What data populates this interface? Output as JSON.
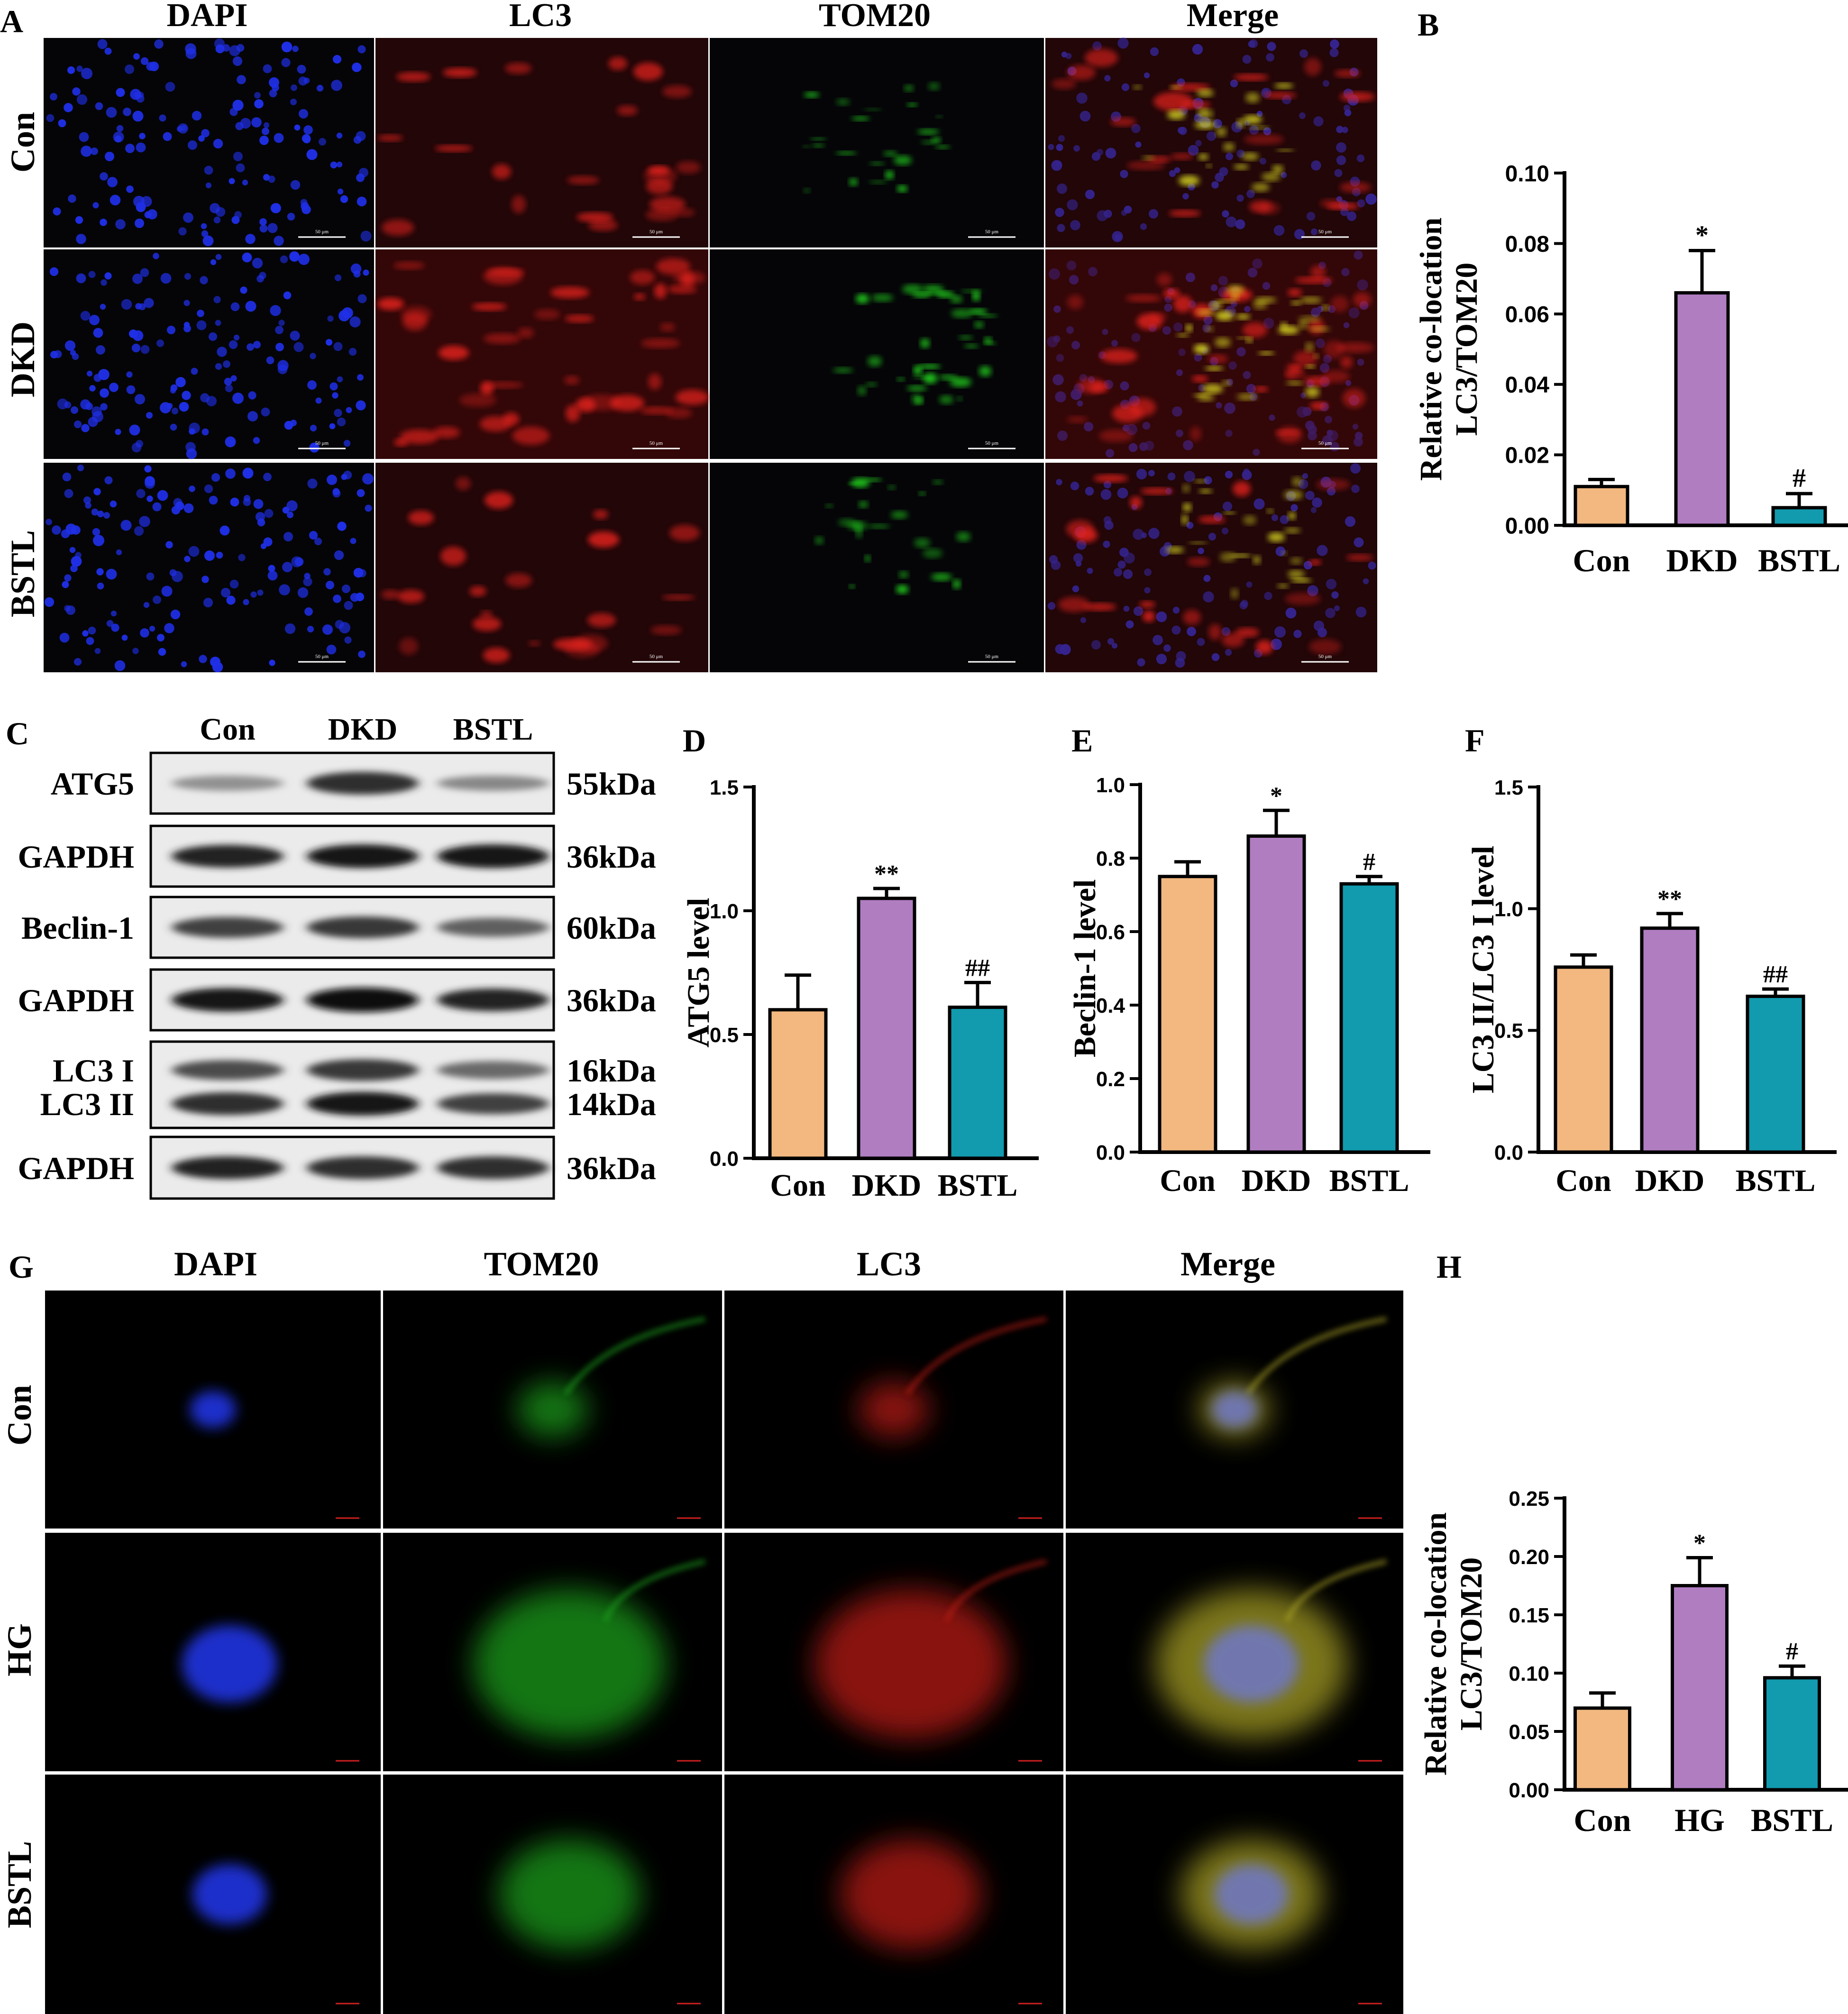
{
  "panels": {
    "A": {
      "letter": "A",
      "columns": [
        "DAPI",
        "LC3",
        "TOM20",
        "Merge"
      ],
      "rows": [
        "Con",
        "DKD",
        "BSTL"
      ],
      "scale_bar": "50 μm"
    },
    "C": {
      "letter": "C",
      "lanes": [
        "Con",
        "DKD",
        "BSTL"
      ],
      "blots": [
        {
          "labels": [
            "ATG5"
          ],
          "sizes": [
            "55kDa"
          ],
          "intensity": [
            [
              0.35,
              0.85,
              0.4
            ]
          ]
        },
        {
          "labels": [
            "GAPDH"
          ],
          "sizes": [
            "36kDa"
          ],
          "intensity": [
            [
              0.9,
              0.95,
              0.95
            ]
          ]
        },
        {
          "labels": [
            "Beclin-1"
          ],
          "sizes": [
            "60kDa"
          ],
          "intensity": [
            [
              0.75,
              0.8,
              0.6
            ]
          ]
        },
        {
          "labels": [
            "GAPDH"
          ],
          "sizes": [
            "36kDa"
          ],
          "intensity": [
            [
              0.95,
              1.0,
              0.9
            ]
          ]
        },
        {
          "labels": [
            "LC3 I",
            "LC3 II"
          ],
          "sizes": [
            "16kDa",
            "14kDa"
          ],
          "intensity": [
            [
              0.7,
              0.8,
              0.55
            ],
            [
              0.85,
              0.95,
              0.75
            ]
          ]
        },
        {
          "labels": [
            "GAPDH"
          ],
          "sizes": [
            "36kDa"
          ],
          "intensity": [
            [
              0.9,
              0.85,
              0.85
            ]
          ]
        }
      ]
    },
    "G": {
      "letter": "G",
      "columns": [
        "DAPI",
        "TOM20",
        "LC3",
        "Merge"
      ],
      "rows": [
        "Con",
        "HG",
        "BSTL"
      ]
    }
  },
  "colors": {
    "con": "#F2B880",
    "model": "#B07DC1",
    "bstl": "#129AAE"
  },
  "chart_data": [
    {
      "letter": "B",
      "type": "bar",
      "categories": [
        "Con",
        "DKD",
        "BSTL"
      ],
      "values": [
        0.011,
        0.066,
        0.005
      ],
      "errors": [
        0.002,
        0.012,
        0.004
      ],
      "annotations": [
        "",
        "*",
        "#"
      ],
      "ylabel_lines": [
        "Relative co-location",
        "LC3/TOM20"
      ],
      "ylim": [
        0,
        0.1
      ],
      "yticks": [
        "0.00",
        "0.02",
        "0.04",
        "0.06",
        "0.08",
        "0.10"
      ]
    },
    {
      "letter": "D",
      "type": "bar",
      "categories": [
        "Con",
        "DKD",
        "BSTL"
      ],
      "values": [
        0.6,
        1.05,
        0.61
      ],
      "errors": [
        0.14,
        0.04,
        0.1
      ],
      "annotations": [
        "",
        "**",
        "##"
      ],
      "ylabel_lines": [
        "ATG5 level"
      ],
      "ylim": [
        0,
        1.5
      ],
      "yticks": [
        "0.0",
        "0.5",
        "1.0",
        "1.5"
      ]
    },
    {
      "letter": "E",
      "type": "bar",
      "categories": [
        "Con",
        "DKD",
        "BSTL"
      ],
      "values": [
        0.75,
        0.86,
        0.73
      ],
      "errors": [
        0.04,
        0.07,
        0.02
      ],
      "annotations": [
        "",
        "*",
        "#"
      ],
      "ylabel_lines": [
        "Beclin-1 level"
      ],
      "ylim": [
        0,
        1.0
      ],
      "yticks": [
        "0.0",
        "0.2",
        "0.4",
        "0.6",
        "0.8",
        "1.0"
      ]
    },
    {
      "letter": "F",
      "type": "bar",
      "categories": [
        "Con",
        "DKD",
        "BSTL"
      ],
      "values": [
        0.76,
        0.92,
        0.64
      ],
      "errors": [
        0.05,
        0.06,
        0.03
      ],
      "annotations": [
        "",
        "**",
        "##"
      ],
      "ylabel_lines": [
        "LC3 II/LC3 I level"
      ],
      "ylim": [
        0,
        1.5
      ],
      "yticks": [
        "0.0",
        "0.5",
        "1.0",
        "1.5"
      ]
    },
    {
      "letter": "H",
      "type": "bar",
      "categories": [
        "Con",
        "HG",
        "BSTL"
      ],
      "values": [
        0.07,
        0.175,
        0.096
      ],
      "errors": [
        0.013,
        0.024,
        0.01
      ],
      "annotations": [
        "",
        "*",
        "#"
      ],
      "ylabel_lines": [
        "Relative co-location",
        "LC3/TOM20"
      ],
      "ylim": [
        0,
        0.25
      ],
      "yticks": [
        "0.00",
        "0.05",
        "0.10",
        "0.15",
        "0.20",
        "0.25"
      ]
    }
  ]
}
